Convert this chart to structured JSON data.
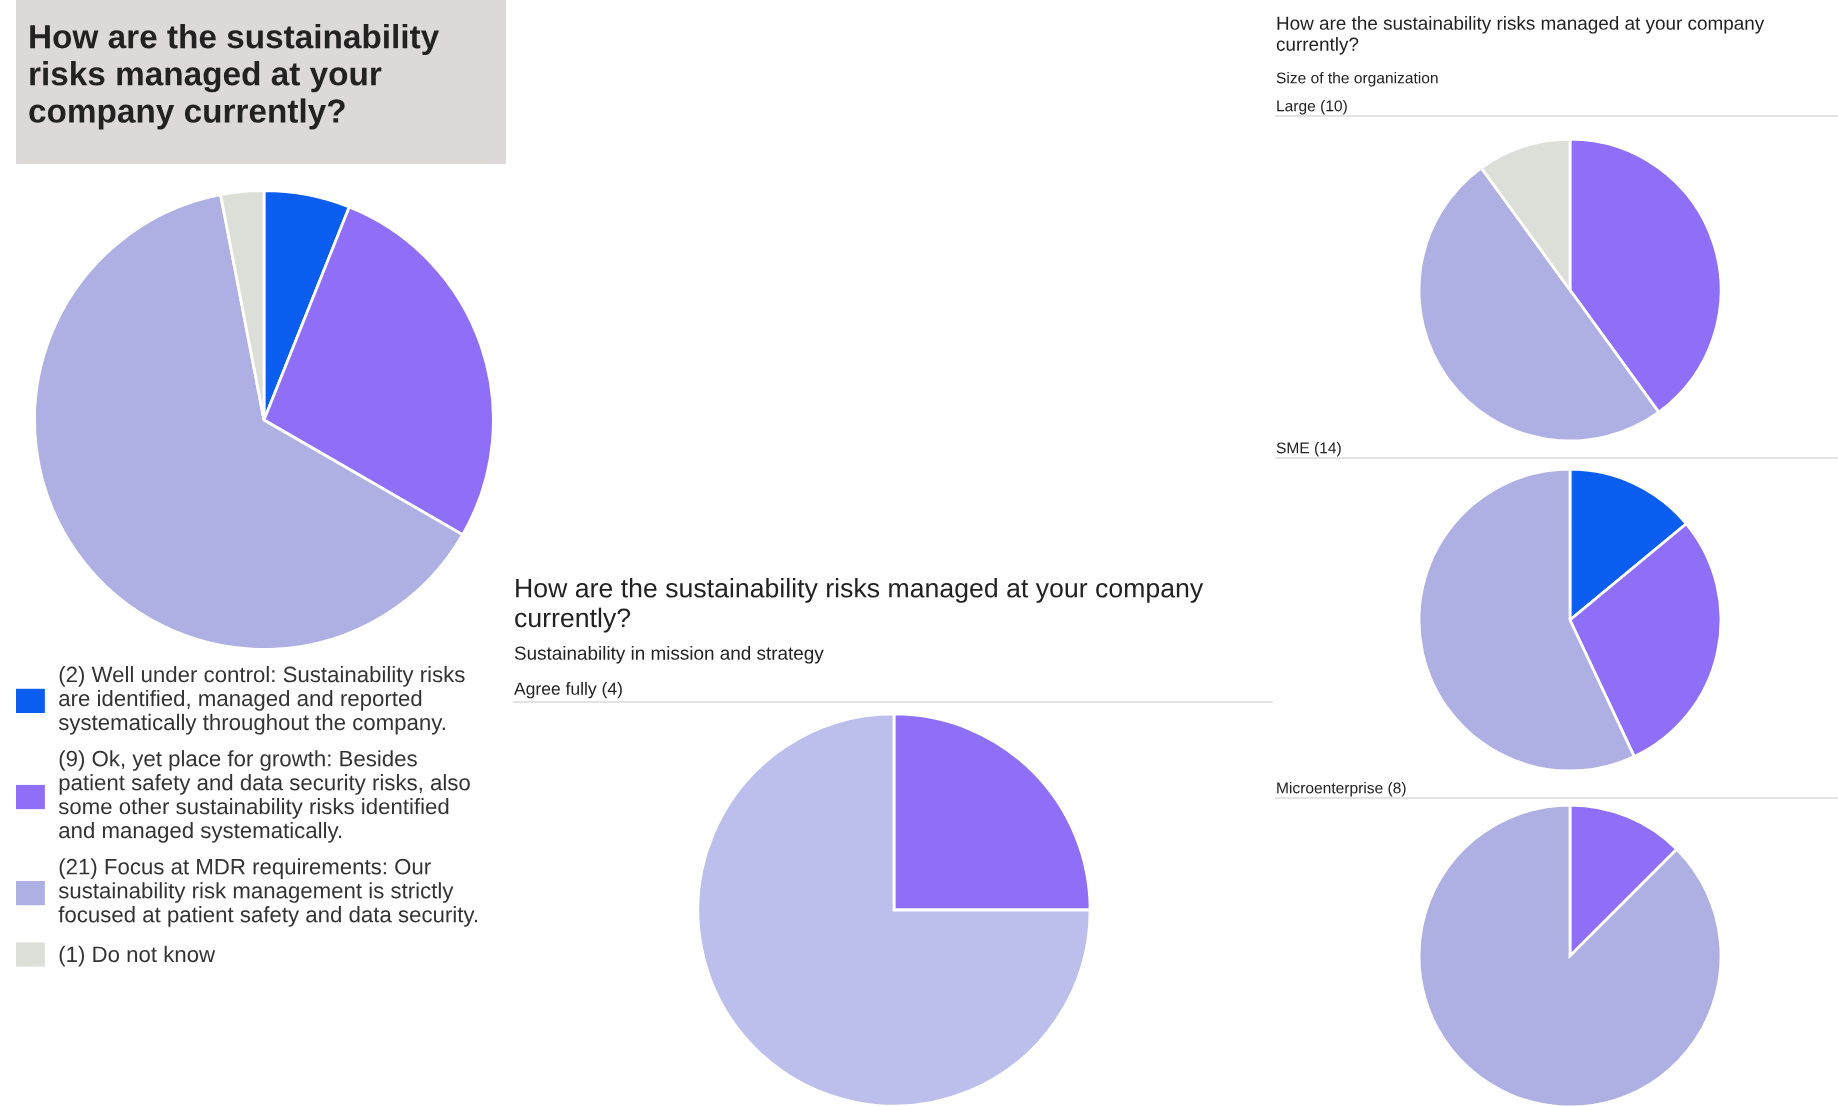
{
  "chart_data": [
    {
      "type": "pie",
      "title": "How are the sustainability risks managed at your company currently?",
      "categories": [
        "(2) Well under control: Sustainability risks are identified, managed and reported systematically throughout the company.",
        "(9) Ok, yet place for growth: Besides patient safety and data security risks, also some other sustainability risks identified and managed systematically.",
        "(21) Focus at MDR requirements: Our sustainability risk management is strictly focused at patient safety and data security.",
        "(1) Do not know"
      ],
      "values": [
        2,
        9,
        21,
        1
      ],
      "colors": [
        "#0b5ef0",
        "#8f6ff7",
        "#aeb0e3",
        "#dcdfd8"
      ],
      "legend": "bottom"
    },
    {
      "type": "pie",
      "title": "How are the sustainability risks managed at your company currently?",
      "subtitle": "Sustainability in mission and strategy",
      "annotations": [
        "Agree fully (4)"
      ],
      "categories": [
        null,
        null
      ],
      "values": [
        25,
        75
      ],
      "colors": [
        "#8f6ff7",
        "#bcbfec"
      ]
    },
    {
      "type": "pie",
      "title": "How are the sustainability risks managed at your company currently?",
      "subtitle": "Size of the organization",
      "annotations": [
        "Large (10)"
      ],
      "categories": [
        null,
        null,
        null
      ],
      "values": [
        40,
        50,
        10
      ],
      "colors": [
        "#8f6ff7",
        "#aeb0e3",
        "#dcdfd8"
      ]
    },
    {
      "type": "pie",
      "annotations": [
        "SME (14)"
      ],
      "categories": [
        null,
        null,
        null
      ],
      "values": [
        14,
        29,
        57
      ],
      "colors": [
        "#0b5ef0",
        "#8f6ff7",
        "#aeb0e3"
      ]
    },
    {
      "type": "pie",
      "annotations": [
        "Microenterprise (8)"
      ],
      "categories": [
        null,
        null
      ],
      "values": [
        12.5,
        87.5
      ],
      "colors": [
        "#8f6ff7",
        "#aeb0e3"
      ]
    }
  ]
}
